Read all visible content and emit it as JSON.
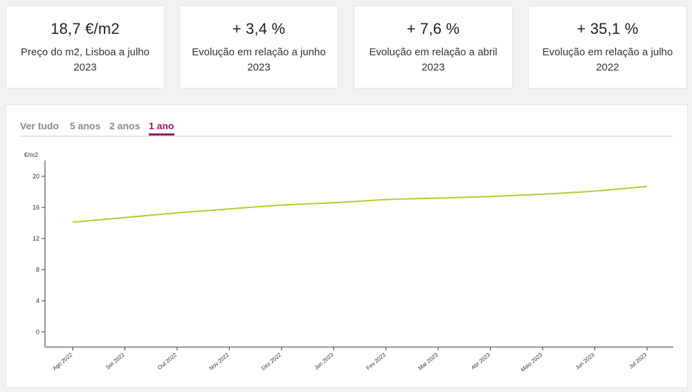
{
  "stats": [
    {
      "value": "18,7 €/m2",
      "label": "Preço do m2, Lisboa a julho 2023"
    },
    {
      "value": "+ 3,4 %",
      "label": "Evolução em relação a junho 2023"
    },
    {
      "value": "+ 7,6 %",
      "label": "Evolução em relação a abril 2023"
    },
    {
      "value": "+ 35,1 %",
      "label": "Evolução em relação a julho 2022"
    }
  ],
  "tabs": [
    "Ver tudo",
    "5 anos",
    "2 anos",
    "1 ano"
  ],
  "active_tab": "1 ano",
  "colors": {
    "line": "#b5cc2e",
    "accent": "#8c1b6b"
  },
  "chart_data": {
    "type": "line",
    "ylabel": "€/m2",
    "ylim": [
      -1,
      22
    ],
    "yticks": [
      0,
      4,
      8,
      12,
      16,
      20
    ],
    "categories": [
      "Ago 2022",
      "Set 2022",
      "Out 2022",
      "Nov 2022",
      "Dez 2022",
      "Jan 2023",
      "Fev 2023",
      "Mar 2023",
      "Abr 2023",
      "Maio 2023",
      "Jun 2023",
      "Jul 2023"
    ],
    "series": [
      {
        "values": [
          14.1,
          14.7,
          15.3,
          15.8,
          16.3,
          16.6,
          17.0,
          17.2,
          17.4,
          17.7,
          18.1,
          18.7
        ]
      }
    ],
    "grid": false
  }
}
